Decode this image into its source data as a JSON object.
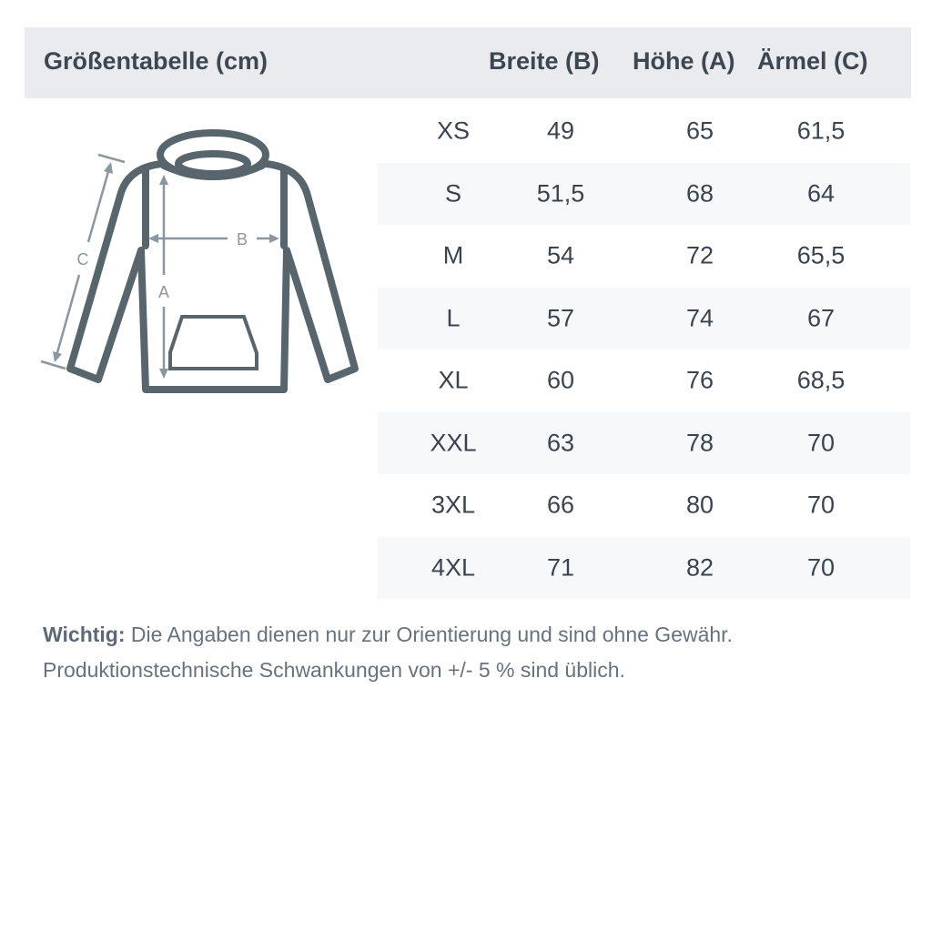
{
  "header": {
    "title": "Größentabelle (cm)",
    "columns": [
      "Breite (B)",
      "Höhe (A)",
      "Ärmel (C)"
    ]
  },
  "diagram": {
    "labels": {
      "a": "A",
      "b": "B",
      "c": "C"
    },
    "colors": {
      "outline": "#59656d",
      "arrows": "#8a96a0"
    }
  },
  "table": {
    "rows": [
      {
        "size": "XS",
        "breite": "49",
        "hoehe": "65",
        "aermel": "61,5"
      },
      {
        "size": "S",
        "breite": "51,5",
        "hoehe": "68",
        "aermel": "64"
      },
      {
        "size": "M",
        "breite": "54",
        "hoehe": "72",
        "aermel": "65,5"
      },
      {
        "size": "L",
        "breite": "57",
        "hoehe": "74",
        "aermel": "67"
      },
      {
        "size": "XL",
        "breite": "60",
        "hoehe": "76",
        "aermel": "68,5"
      },
      {
        "size": "XXL",
        "breite": "63",
        "hoehe": "78",
        "aermel": "70"
      },
      {
        "size": "3XL",
        "breite": "66",
        "hoehe": "80",
        "aermel": "70"
      },
      {
        "size": "4XL",
        "breite": "71",
        "hoehe": "82",
        "aermel": "70"
      }
    ]
  },
  "note": {
    "label": "Wichtig:",
    "line1": " Die Angaben dienen nur zur Orientierung und sind ohne Gewähr.",
    "line2": "Produktionstechnische Schwankungen von +/- 5 % sind üblich."
  },
  "colors": {
    "header_bg": "#eaebee",
    "stripe_bg": "#f7f8fa",
    "text": "#3a4450"
  }
}
